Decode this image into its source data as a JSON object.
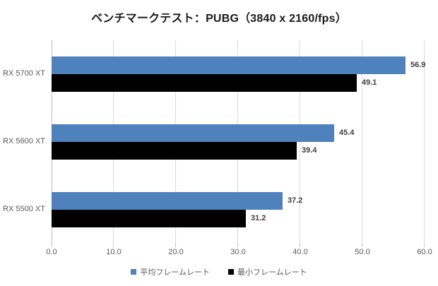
{
  "chart_data": {
    "type": "bar",
    "orientation": "horizontal",
    "title": "ベンチマークテスト：PUBG（3840 x 2160/fps）",
    "categories": [
      "RX 5700 XT",
      "RX 5600 XT",
      "RX 5500 XT"
    ],
    "series": [
      {
        "name": "平均フレームレート",
        "color": "#4F81BD",
        "values": [
          56.9,
          45.4,
          37.2
        ]
      },
      {
        "name": "最小フレームレート",
        "color": "#000000",
        "values": [
          49.1,
          39.4,
          31.2
        ]
      }
    ],
    "xlim": [
      0,
      60
    ],
    "x_ticks": [
      0,
      10,
      20,
      30,
      40,
      50,
      60
    ],
    "x_tick_labels": [
      "0.0",
      "10.0",
      "20.0",
      "30.0",
      "40.0",
      "50.0",
      "60.0"
    ],
    "grid": true,
    "legend_position": "bottom",
    "theme": {
      "background": "#FFFFFF",
      "gridline": "#D9D9D9",
      "axis_line": "#BFBFBF",
      "tick_label_color": "#595959",
      "category_label_color": "#595959",
      "value_label_color": "#404040",
      "title_color": "#1A1A1A",
      "legend_text_color": "#595959"
    }
  }
}
